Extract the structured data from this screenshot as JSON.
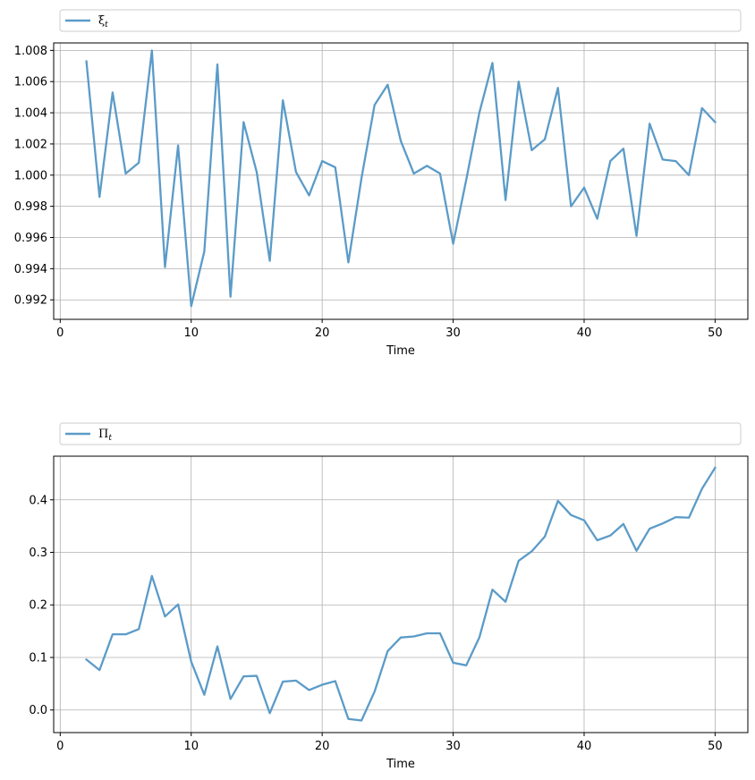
{
  "chart_data": [
    {
      "type": "line",
      "xlabel": "Time",
      "ylabel": "",
      "xlim": [
        -0.5,
        52.5
      ],
      "ylim": [
        0.99075,
        1.00848
      ],
      "xticks": [
        0,
        10,
        20,
        30,
        40,
        50
      ],
      "yticks": [
        0.992,
        0.994,
        0.996,
        0.998,
        1.0,
        1.002,
        1.004,
        1.006,
        1.008
      ],
      "ytick_labels": [
        "0.992",
        "0.994",
        "0.996",
        "0.998",
        "1.000",
        "1.002",
        "1.004",
        "1.006",
        "1.008"
      ],
      "grid": true,
      "legend": "above-plot",
      "series": [
        {
          "name": "ξt",
          "name_base": "ξ",
          "name_sub": "t",
          "color": "#5b9bc8",
          "x": [
            2,
            3,
            4,
            5,
            6,
            7,
            8,
            9,
            10,
            11,
            12,
            13,
            14,
            15,
            16,
            17,
            18,
            19,
            20,
            21,
            22,
            23,
            24,
            25,
            26,
            27,
            28,
            29,
            30,
            31,
            32,
            33,
            34,
            35,
            36,
            37,
            38,
            39,
            40,
            41,
            42,
            43,
            44,
            45,
            46,
            47,
            48,
            49,
            50
          ],
          "values": [
            1.0073,
            0.9986,
            1.0053,
            1.0001,
            1.0008,
            1.008,
            0.9941,
            1.0019,
            0.9916,
            0.9951,
            1.0071,
            0.9922,
            1.0034,
            1.0002,
            0.9945,
            1.0048,
            1.0002,
            0.9987,
            1.0009,
            1.0005,
            0.9944,
            0.9998,
            1.0045,
            1.0058,
            1.0022,
            1.0001,
            1.0006,
            1.0001,
            0.9956,
            0.9997,
            1.004,
            1.0072,
            0.9984,
            1.006,
            1.0016,
            1.0023,
            1.0056,
            0.998,
            0.9992,
            0.9972,
            1.0009,
            1.0017,
            0.9961,
            1.0033,
            1.001,
            1.0009,
            1.0,
            1.0043,
            1.0034
          ]
        }
      ]
    },
    {
      "type": "line",
      "xlabel": "Time",
      "ylabel": "",
      "xlim": [
        -0.5,
        52.5
      ],
      "ylim": [
        -0.043,
        0.483
      ],
      "xticks": [
        0,
        10,
        20,
        30,
        40,
        50
      ],
      "yticks": [
        0.0,
        0.1,
        0.2,
        0.3,
        0.4
      ],
      "ytick_labels": [
        "0.0",
        "0.1",
        "0.2",
        "0.3",
        "0.4"
      ],
      "grid": true,
      "legend": "above-plot",
      "series": [
        {
          "name": "Πt",
          "name_base": "Π",
          "name_sub": "t",
          "color": "#5b9bc8",
          "x": [
            2,
            3,
            4,
            5,
            6,
            7,
            8,
            9,
            10,
            11,
            12,
            13,
            14,
            15,
            16,
            17,
            18,
            19,
            20,
            21,
            22,
            23,
            24,
            25,
            26,
            27,
            28,
            29,
            30,
            31,
            32,
            33,
            34,
            35,
            36,
            37,
            38,
            39,
            40,
            41,
            42,
            43,
            44,
            45,
            46,
            47,
            48,
            49,
            50
          ],
          "values": [
            0.096,
            0.076,
            0.144,
            0.144,
            0.154,
            0.255,
            0.178,
            0.201,
            0.092,
            0.029,
            0.121,
            0.021,
            0.064,
            0.065,
            -0.006,
            0.054,
            0.056,
            0.038,
            0.048,
            0.055,
            -0.017,
            -0.02,
            0.035,
            0.112,
            0.138,
            0.14,
            0.146,
            0.146,
            0.09,
            0.085,
            0.138,
            0.229,
            0.206,
            0.284,
            0.302,
            0.33,
            0.398,
            0.371,
            0.361,
            0.323,
            0.332,
            0.354,
            0.303,
            0.345,
            0.355,
            0.367,
            0.366,
            0.421,
            0.461
          ]
        }
      ]
    }
  ]
}
